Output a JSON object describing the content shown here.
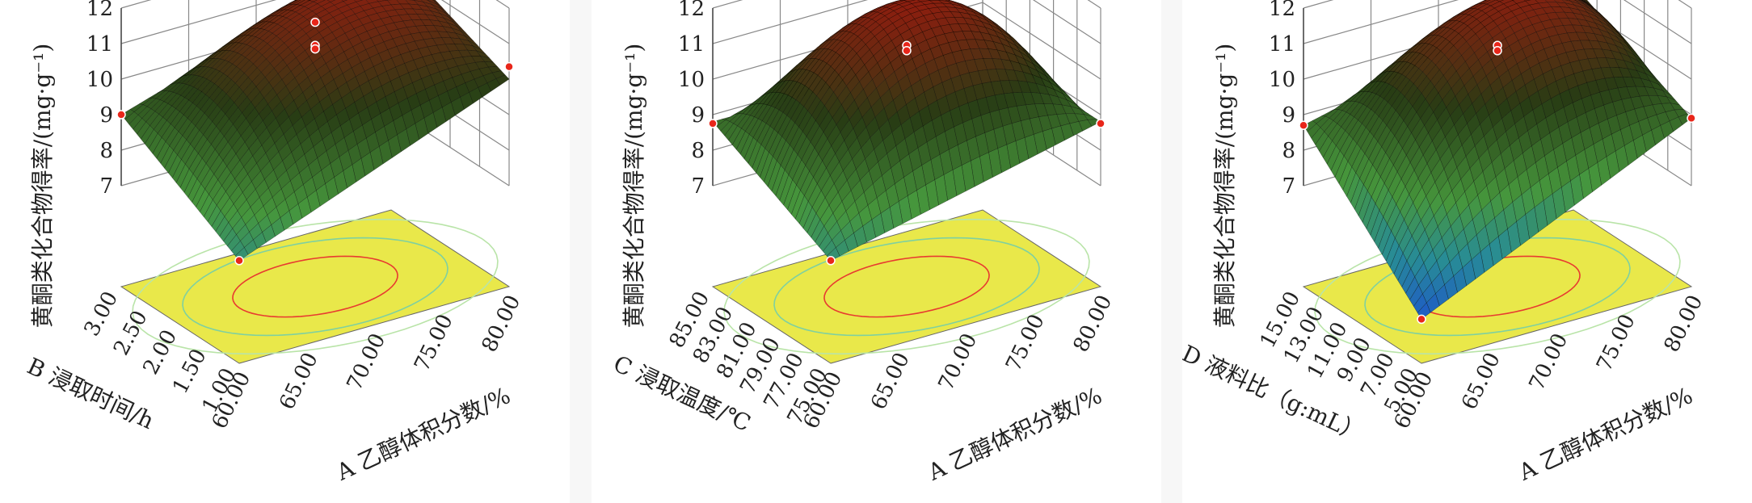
{
  "chart_data": [
    {
      "type": "surface3d",
      "z_label": "黄酮类化合物得率/(mg·g⁻¹)",
      "x_label": "A 乙醇体积分数/%",
      "y_label": "B 浸取时间/h",
      "x_ticks": [
        "60.00",
        "65.00",
        "70.00",
        "75.00",
        "80.00"
      ],
      "y_ticks": [
        "1.00",
        "1.50",
        "2.00",
        "2.50",
        "3.00"
      ],
      "z_ticks": [
        "7",
        "8",
        "9",
        "10",
        "11",
        "12"
      ],
      "x_range": [
        60,
        80
      ],
      "y_range": [
        1,
        3
      ],
      "z_range": [
        7,
        12
      ],
      "surface_corners": {
        "x60_y1": 7.05,
        "x80_y1": 10.0,
        "x60_y3": 9.0,
        "x80_y3": 11.4
      },
      "surface_peak": 11.45,
      "design_points": [
        {
          "x": 70,
          "y": 2,
          "z": 11.6
        },
        {
          "x": 70,
          "y": 2,
          "z": 10.95
        },
        {
          "x": 70,
          "y": 2,
          "z": 10.85
        },
        {
          "x": 60,
          "y": 1,
          "z": 7.05
        },
        {
          "x": 80,
          "y": 1,
          "z": 10.35
        },
        {
          "x": 60,
          "y": 3,
          "z": 9.0
        }
      ]
    },
    {
      "type": "surface3d",
      "z_label": "黄酮类化合物得率/(mg·g⁻¹)",
      "x_label": "A 乙醇体积分数/%",
      "y_label": "C 浸取温度/℃",
      "x_ticks": [
        "60.00",
        "65.00",
        "70.00",
        "75.00",
        "80.00"
      ],
      "y_ticks": [
        "75.00",
        "77.00",
        "79.00",
        "81.00",
        "83.00",
        "85.00"
      ],
      "z_ticks": [
        "7",
        "8",
        "9",
        "10",
        "11",
        "12"
      ],
      "x_range": [
        60,
        80
      ],
      "y_range": [
        75,
        85
      ],
      "z_range": [
        7,
        12
      ],
      "surface_corners": {
        "x60_y1": 7.05,
        "x80_y1": 8.8,
        "x60_y3": 8.8,
        "x80_y3": 8.8
      },
      "surface_peak": 11.95,
      "design_points": [
        {
          "x": 70,
          "y": 80,
          "z": 10.95
        },
        {
          "x": 70,
          "y": 80,
          "z": 10.8
        },
        {
          "x": 60,
          "y": 75,
          "z": 7.05
        },
        {
          "x": 80,
          "y": 75,
          "z": 8.75
        },
        {
          "x": 60,
          "y": 85,
          "z": 8.75
        }
      ]
    },
    {
      "type": "surface3d",
      "z_label": "黄酮类化合物得率/(mg·g⁻¹)",
      "x_label": "A 乙醇体积分数/%",
      "y_label": "D 液料比（g:mL）",
      "x_ticks": [
        "60.00",
        "65.00",
        "70.00",
        "75.00",
        "80.00"
      ],
      "y_ticks": [
        "5.00",
        "7.00",
        "9.00",
        "11.00",
        "13.00",
        "15.00"
      ],
      "z_ticks": [
        "7",
        "8",
        "9",
        "10",
        "11",
        "12"
      ],
      "x_range": [
        60,
        80
      ],
      "y_range": [
        5,
        15
      ],
      "z_range": [
        7,
        12
      ],
      "surface_corners": {
        "x60_y1": 5.4,
        "x80_y1": 8.9,
        "x60_y3": 8.7,
        "x80_y3": 10.5
      },
      "surface_peak": 11.5,
      "design_points": [
        {
          "x": 70,
          "y": 10,
          "z": 10.95
        },
        {
          "x": 70,
          "y": 10,
          "z": 10.8
        },
        {
          "x": 60,
          "y": 5,
          "z": 5.4
        },
        {
          "x": 80,
          "y": 5,
          "z": 8.9
        },
        {
          "x": 60,
          "y": 15,
          "z": 8.7
        }
      ]
    }
  ]
}
